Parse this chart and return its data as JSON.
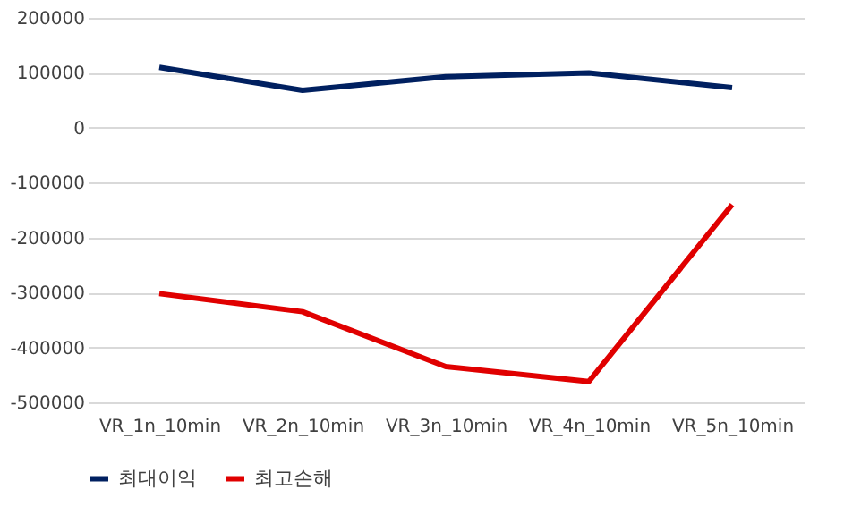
{
  "chart_data": {
    "type": "line",
    "categories": [
      "VR_1n_10min",
      "VR_2n_10min",
      "VR_3n_10min",
      "VR_4n_10min",
      "VR_5n_10min"
    ],
    "series": [
      {
        "name": "최대이익",
        "color": "#002060",
        "values": [
          110000,
          68000,
          93000,
          100000,
          73000
        ]
      },
      {
        "name": "최고손해",
        "color": "#e00000",
        "values": [
          -302000,
          -335000,
          -435000,
          -462000,
          -140000
        ]
      }
    ],
    "ylim": [
      -500000,
      200000
    ],
    "yticks": [
      -500000,
      -400000,
      -300000,
      -200000,
      -100000,
      0,
      100000,
      200000
    ],
    "grid": "y",
    "legend": "bottom",
    "marker": "none",
    "line_style": "solid"
  }
}
